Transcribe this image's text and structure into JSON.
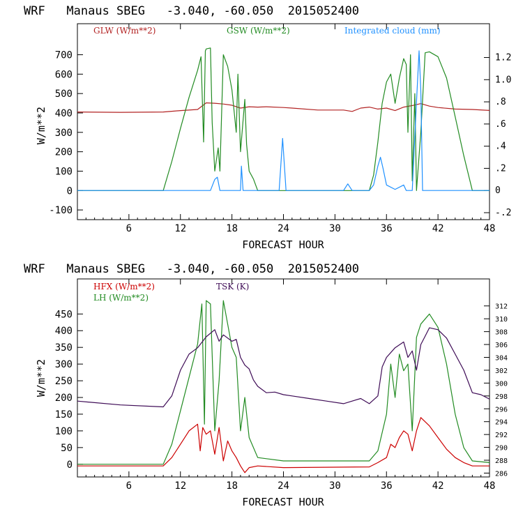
{
  "chart_data": [
    {
      "type": "line",
      "title": "WRF   Manaus SBEG   -3.040, -60.050  2015052400",
      "xlabel": "FORECAST HOUR",
      "ylabel": "W/m**2",
      "xlim": [
        0,
        48
      ],
      "ylim": [
        -150,
        860
      ],
      "y2lim": [
        -0.263,
        1.505
      ],
      "xticks": [
        "6",
        "12",
        "18",
        "24",
        "30",
        "36",
        "42",
        "48"
      ],
      "yticks": [
        "-100",
        "0",
        "100",
        "200",
        "300",
        "400",
        "500",
        "600",
        "700"
      ],
      "y2ticks": [
        "-.2",
        "0",
        ".2",
        ".4",
        ".6",
        ".8",
        "1.0",
        "1.2"
      ],
      "grid": false,
      "legend_position": "top",
      "series": [
        {
          "name": "GLW (W/m**2)",
          "axis": "left",
          "color": "#b22222",
          "points": [
            [
              0,
              405
            ],
            [
              5,
              403
            ],
            [
              10,
              405
            ],
            [
              12,
              412
            ],
            [
              14,
              418
            ],
            [
              15,
              452
            ],
            [
              16,
              450
            ],
            [
              17,
              446
            ],
            [
              18,
              440
            ],
            [
              19,
              425
            ],
            [
              20,
              432
            ],
            [
              21,
              430
            ],
            [
              22,
              432
            ],
            [
              24,
              428
            ],
            [
              25,
              425
            ],
            [
              28,
              415
            ],
            [
              31,
              415
            ],
            [
              32,
              408
            ],
            [
              33,
              425
            ],
            [
              34,
              430
            ],
            [
              35,
              420
            ],
            [
              36,
              425
            ],
            [
              37,
              412
            ],
            [
              38,
              430
            ],
            [
              39,
              438
            ],
            [
              40,
              448
            ],
            [
              41,
              435
            ],
            [
              42,
              428
            ],
            [
              44,
              420
            ],
            [
              46,
              418
            ],
            [
              48,
              413
            ]
          ]
        },
        {
          "name": "GSW (W/m**2)",
          "axis": "left",
          "color": "#228b22",
          "points": [
            [
              0,
              0
            ],
            [
              10,
              0
            ],
            [
              11,
              150
            ],
            [
              12,
              320
            ],
            [
              13,
              480
            ],
            [
              14,
              620
            ],
            [
              14.4,
              690
            ],
            [
              14.7,
              250
            ],
            [
              14.9,
              720
            ],
            [
              15,
              730
            ],
            [
              15.5,
              735
            ],
            [
              15.7,
              350
            ],
            [
              16,
              100
            ],
            [
              16.4,
              220
            ],
            [
              16.6,
              100
            ],
            [
              17,
              700
            ],
            [
              17.5,
              640
            ],
            [
              18,
              520
            ],
            [
              18.5,
              300
            ],
            [
              18.7,
              600
            ],
            [
              19,
              200
            ],
            [
              19.5,
              470
            ],
            [
              19.7,
              240
            ],
            [
              20,
              100
            ],
            [
              20.5,
              60
            ],
            [
              21,
              0
            ],
            [
              34,
              0
            ],
            [
              34.5,
              80
            ],
            [
              35,
              250
            ],
            [
              35.5,
              450
            ],
            [
              36,
              560
            ],
            [
              36.5,
              600
            ],
            [
              37,
              450
            ],
            [
              37.5,
              580
            ],
            [
              38,
              680
            ],
            [
              38.3,
              650
            ],
            [
              38.5,
              300
            ],
            [
              38.8,
              700
            ],
            [
              39,
              50
            ],
            [
              39.3,
              500
            ],
            [
              39.5,
              0
            ],
            [
              40,
              300
            ],
            [
              40.5,
              710
            ],
            [
              41,
              715
            ],
            [
              42,
              690
            ],
            [
              43,
              580
            ],
            [
              44,
              380
            ],
            [
              45,
              180
            ],
            [
              46,
              0
            ],
            [
              48,
              0
            ]
          ]
        },
        {
          "name": "Integrated cloud (mm)",
          "axis": "right",
          "color": "#1e90ff",
          "points": [
            [
              0,
              0
            ],
            [
              15.5,
              0
            ],
            [
              16,
              0.1
            ],
            [
              16.3,
              0.12
            ],
            [
              16.6,
              0
            ],
            [
              19,
              0
            ],
            [
              19.1,
              0.22
            ],
            [
              19.3,
              0
            ],
            [
              23.5,
              0
            ],
            [
              23.9,
              0.47
            ],
            [
              24.3,
              0
            ],
            [
              31,
              0
            ],
            [
              31.5,
              0.06
            ],
            [
              32,
              0
            ],
            [
              34,
              0
            ],
            [
              34.5,
              0.05
            ],
            [
              35,
              0.22
            ],
            [
              35.3,
              0.3
            ],
            [
              35.6,
              0.2
            ],
            [
              36,
              0.05
            ],
            [
              37,
              0.01
            ],
            [
              38,
              0.05
            ],
            [
              38.3,
              0
            ],
            [
              39,
              0
            ],
            [
              39.5,
              0.8
            ],
            [
              39.8,
              1.26
            ],
            [
              40,
              0.9
            ],
            [
              40.2,
              0
            ],
            [
              48,
              0
            ]
          ]
        }
      ]
    },
    {
      "type": "line",
      "title": "WRF   Manaus SBEG   -3.040, -60.050  2015052400",
      "xlabel": "FORECAST HOUR",
      "ylabel": "W/m**2",
      "xlim": [
        0,
        48
      ],
      "ylim": [
        -38,
        555
      ],
      "y2lim": [
        285.4,
        316.2
      ],
      "xticks": [
        "6",
        "12",
        "18",
        "24",
        "30",
        "36",
        "42",
        "48"
      ],
      "yticks": [
        "0",
        "50",
        "100",
        "150",
        "200",
        "250",
        "300",
        "350",
        "400",
        "450"
      ],
      "y2ticks": [
        "286",
        "288",
        "290",
        "292",
        "294",
        "296",
        "298",
        "300",
        "302",
        "304",
        "306",
        "308",
        "310",
        "312"
      ],
      "grid": false,
      "legend_position": "top",
      "series": [
        {
          "name": "HFX (W/m**2)",
          "axis": "left",
          "color": "#cc0000",
          "points": [
            [
              0,
              -5
            ],
            [
              10,
              -5
            ],
            [
              11,
              20
            ],
            [
              12,
              60
            ],
            [
              13,
              100
            ],
            [
              14,
              120
            ],
            [
              14.3,
              40
            ],
            [
              14.6,
              110
            ],
            [
              15,
              90
            ],
            [
              15.5,
              100
            ],
            [
              16,
              30
            ],
            [
              16.5,
              110
            ],
            [
              17,
              10
            ],
            [
              17.5,
              70
            ],
            [
              18,
              40
            ],
            [
              18.5,
              20
            ],
            [
              19,
              -5
            ],
            [
              19.5,
              -25
            ],
            [
              20,
              -10
            ],
            [
              21,
              -5
            ],
            [
              24,
              -10
            ],
            [
              34,
              -8
            ],
            [
              35,
              5
            ],
            [
              36,
              20
            ],
            [
              36.5,
              60
            ],
            [
              37,
              50
            ],
            [
              37.5,
              80
            ],
            [
              38,
              100
            ],
            [
              38.5,
              90
            ],
            [
              39,
              40
            ],
            [
              39.5,
              100
            ],
            [
              40,
              140
            ],
            [
              41,
              115
            ],
            [
              42,
              80
            ],
            [
              43,
              45
            ],
            [
              44,
              20
            ],
            [
              45,
              5
            ],
            [
              46,
              -5
            ],
            [
              48,
              -5
            ]
          ]
        },
        {
          "name": "LH (W/m**2)",
          "axis": "left",
          "color": "#228b22",
          "points": [
            [
              0,
              0
            ],
            [
              10,
              0
            ],
            [
              11,
              60
            ],
            [
              12,
              160
            ],
            [
              13,
              260
            ],
            [
              14,
              360
            ],
            [
              14.5,
              480
            ],
            [
              14.8,
              120
            ],
            [
              15,
              490
            ],
            [
              15.5,
              480
            ],
            [
              16,
              100
            ],
            [
              16.5,
              250
            ],
            [
              17,
              490
            ],
            [
              17.5,
              420
            ],
            [
              18,
              350
            ],
            [
              18.5,
              320
            ],
            [
              19,
              100
            ],
            [
              19.5,
              200
            ],
            [
              20,
              80
            ],
            [
              21,
              20
            ],
            [
              24,
              10
            ],
            [
              34,
              10
            ],
            [
              35,
              40
            ],
            [
              36,
              150
            ],
            [
              36.5,
              300
            ],
            [
              37,
              200
            ],
            [
              37.5,
              330
            ],
            [
              38,
              280
            ],
            [
              38.5,
              300
            ],
            [
              39,
              100
            ],
            [
              39.5,
              380
            ],
            [
              40,
              420
            ],
            [
              41,
              450
            ],
            [
              42,
              410
            ],
            [
              43,
              300
            ],
            [
              44,
              150
            ],
            [
              45,
              50
            ],
            [
              46,
              10
            ],
            [
              48,
              5
            ]
          ]
        },
        {
          "name": "TSK (K)",
          "axis": "right",
          "color": "#3d0a55",
          "points": [
            [
              0,
              297.2
            ],
            [
              5,
              296.6
            ],
            [
              10,
              296.3
            ],
            [
              11,
              298
            ],
            [
              12,
              302
            ],
            [
              13,
              304.5
            ],
            [
              14,
              305.5
            ],
            [
              15,
              307.2
            ],
            [
              16,
              308.3
            ],
            [
              16.5,
              306.5
            ],
            [
              17,
              307.5
            ],
            [
              18,
              306.5
            ],
            [
              18.5,
              306.8
            ],
            [
              19,
              304
            ],
            [
              19.5,
              302.8
            ],
            [
              20,
              302.2
            ],
            [
              20.5,
              300.5
            ],
            [
              21,
              299.5
            ],
            [
              22,
              298.5
            ],
            [
              23,
              298.6
            ],
            [
              24,
              298.2
            ],
            [
              25,
              298
            ],
            [
              27,
              297.6
            ],
            [
              29,
              297.2
            ],
            [
              31,
              296.8
            ],
            [
              32,
              297.2
            ],
            [
              33,
              297.6
            ],
            [
              34,
              296.8
            ],
            [
              35,
              298
            ],
            [
              35.5,
              302.5
            ],
            [
              36,
              304
            ],
            [
              37,
              305.5
            ],
            [
              38,
              306.4
            ],
            [
              38.5,
              304
            ],
            [
              39,
              305
            ],
            [
              39.5,
              302
            ],
            [
              40,
              306
            ],
            [
              40.5,
              307.3
            ],
            [
              41,
              308.6
            ],
            [
              42,
              308.3
            ],
            [
              43,
              307
            ],
            [
              44,
              304.5
            ],
            [
              45,
              302
            ],
            [
              46,
              298.5
            ],
            [
              47,
              298.2
            ],
            [
              48,
              297.5
            ]
          ]
        }
      ]
    }
  ]
}
